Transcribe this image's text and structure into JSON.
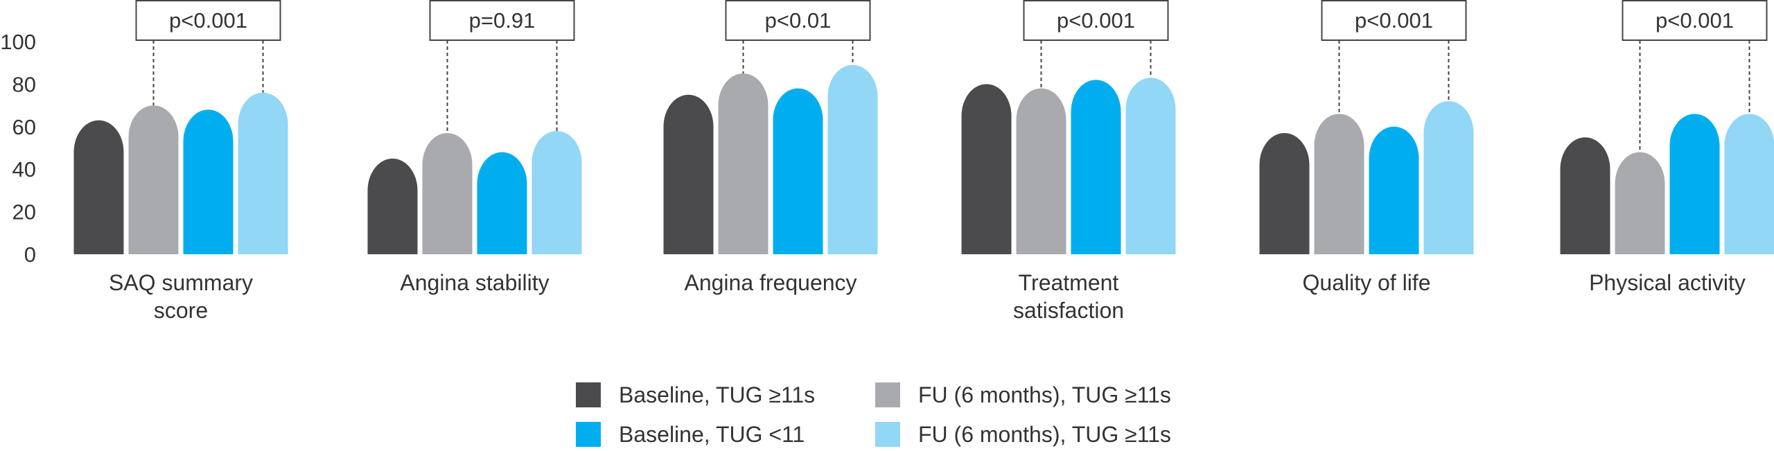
{
  "chart_data": {
    "type": "bar",
    "title": "",
    "xlabel": "",
    "ylabel": "",
    "ylim": [
      0,
      100
    ],
    "yticks": [
      0,
      20,
      40,
      60,
      80,
      100
    ],
    "categories": [
      [
        "SAQ summary",
        "score"
      ],
      [
        "Angina stability"
      ],
      [
        "Angina frequency"
      ],
      [
        "Treatment",
        "satisfaction"
      ],
      [
        "Quality of life"
      ],
      [
        "Physical activity"
      ]
    ],
    "p_values": [
      "p<0.001",
      "p=0.91",
      "p<0.01",
      "p<0.001",
      "p<0.001",
      "p<0.001"
    ],
    "series": [
      {
        "name": "Baseline, TUG ≥11s",
        "color": "#4b4b4d",
        "values": [
          63,
          45,
          75,
          80,
          57,
          55
        ]
      },
      {
        "name": "FU (6 months), TUG ≥11s",
        "color": "#a9aaad",
        "values": [
          70,
          57,
          85,
          78,
          66,
          48
        ]
      },
      {
        "name": "Baseline, TUG <11",
        "color": "#00aeef",
        "values": [
          68,
          48,
          78,
          82,
          60,
          66
        ]
      },
      {
        "name": "FU (6 months), TUG ≥11s",
        "color": "#92d7f5",
        "values": [
          76,
          58,
          89,
          83,
          72,
          66
        ]
      }
    ],
    "legend": "bottom-center",
    "grid": false
  }
}
